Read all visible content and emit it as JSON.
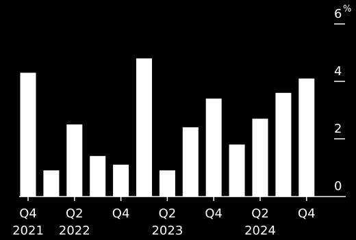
{
  "chart_data": {
    "type": "bar",
    "categories": [
      "Q4 2021",
      "Q1 2022",
      "Q2 2022",
      "Q3 2022",
      "Q4 2022",
      "Q1 2023",
      "Q2 2023",
      "Q3 2023",
      "Q4 2023",
      "Q1 2024",
      "Q2 2024",
      "Q3 2024",
      "Q4 2024"
    ],
    "values": [
      4.3,
      0.9,
      2.5,
      1.4,
      1.1,
      4.8,
      0.9,
      2.4,
      3.4,
      1.8,
      2.7,
      3.6,
      4.1
    ],
    "x_tick_labels": [
      {
        "quarter": "Q4",
        "year": "2021",
        "index": 0
      },
      {
        "quarter": "Q2",
        "year": "2022",
        "index": 2
      },
      {
        "quarter": "Q4",
        "year": "",
        "index": 4
      },
      {
        "quarter": "Q2",
        "year": "2023",
        "index": 6
      },
      {
        "quarter": "Q4",
        "year": "",
        "index": 8
      },
      {
        "quarter": "Q2",
        "year": "2024",
        "index": 10
      },
      {
        "quarter": "Q4",
        "year": "",
        "index": 12
      }
    ],
    "y_ticks": [
      {
        "value": 0,
        "label": "0"
      },
      {
        "value": 2,
        "label": "2"
      },
      {
        "value": 4,
        "label": "4"
      },
      {
        "value": 6,
        "label": "6"
      }
    ],
    "y_unit": "%",
    "ylim": [
      0,
      6
    ],
    "title": "",
    "xlabel": "",
    "ylabel": "",
    "grid": false,
    "y_axis_position": "right",
    "colors": {
      "background": "#000000",
      "bar": "#ffffff",
      "text": "#ffffff",
      "axis": "#ffffff"
    }
  }
}
